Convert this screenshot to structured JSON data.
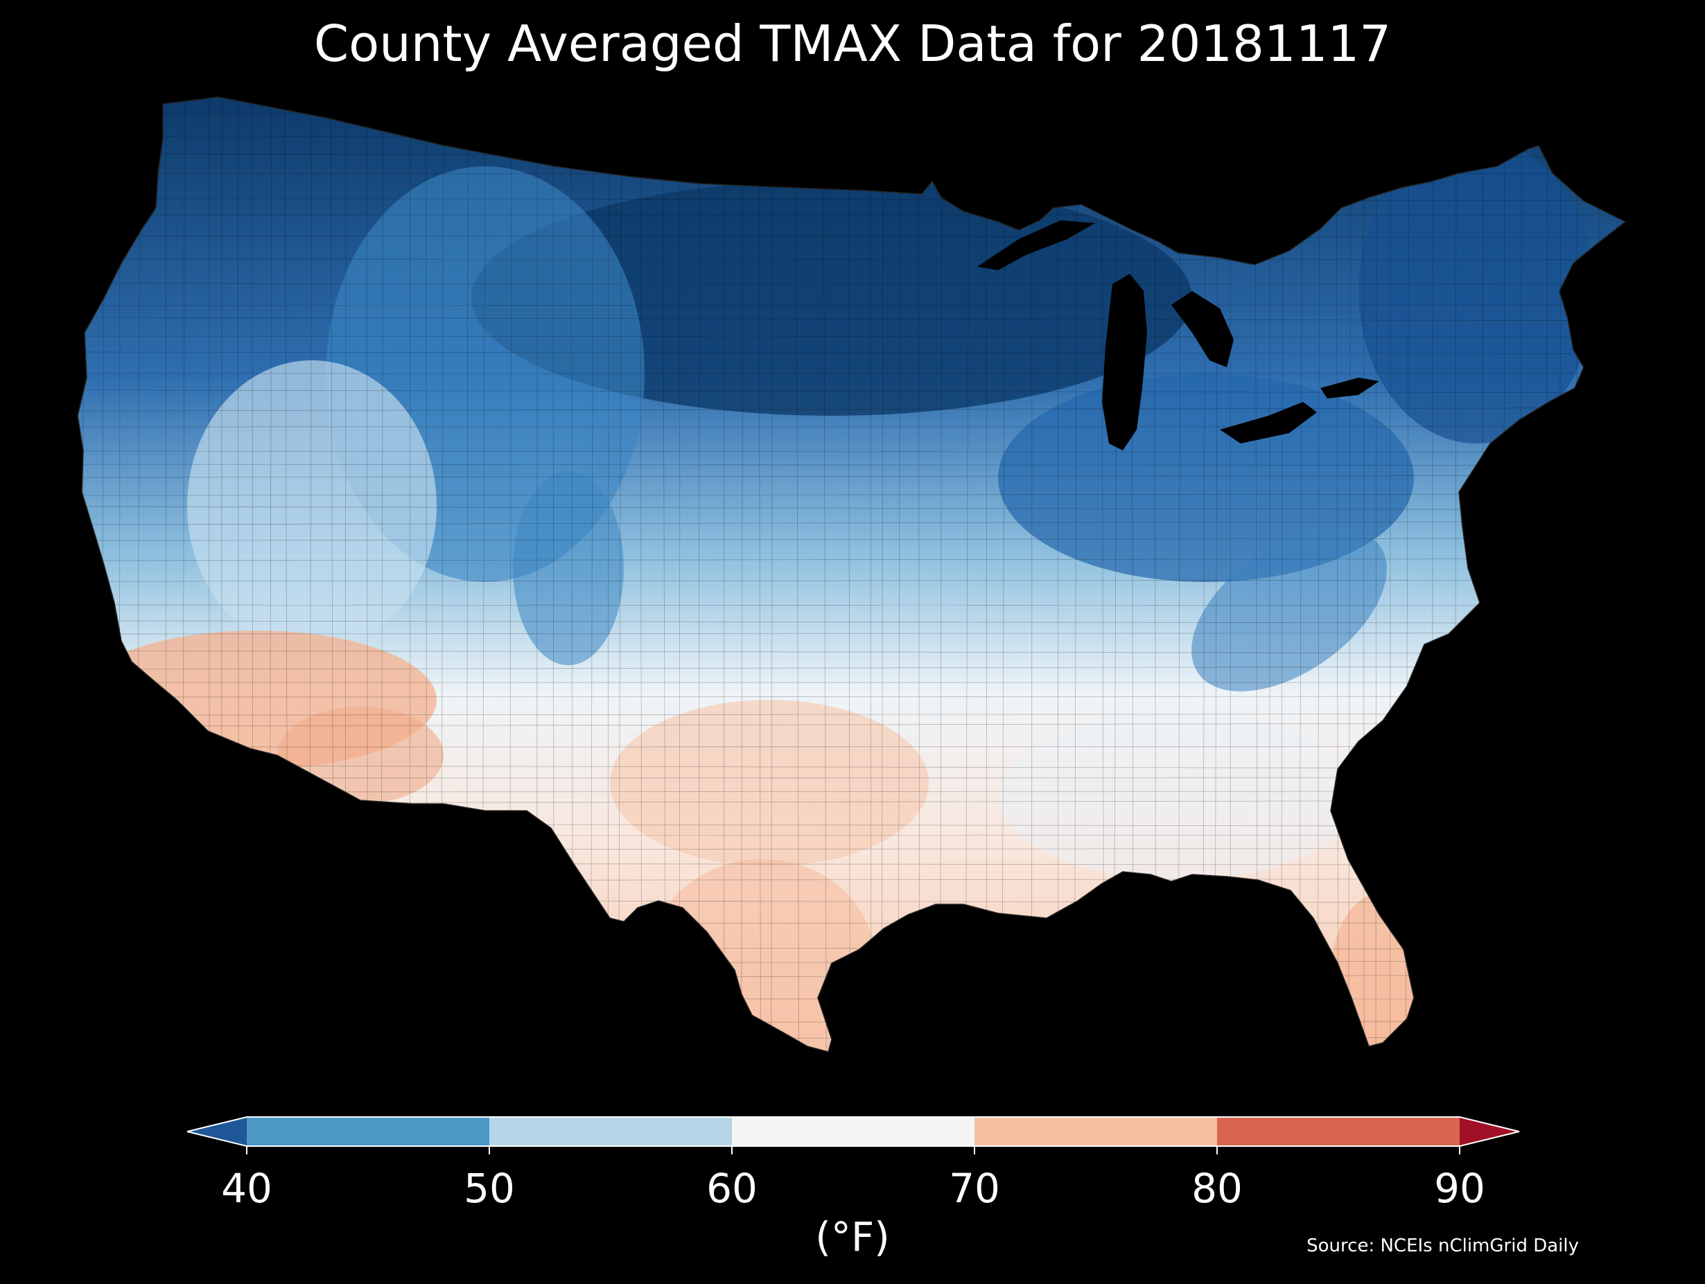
{
  "title": "County Averaged TMAX Data for 20181117",
  "colorbar": {
    "units_label": "(°F)",
    "ticks": [
      "40",
      "50",
      "60",
      "70",
      "80",
      "90"
    ],
    "bins": [
      {
        "range": "<40",
        "color": "#1f5799"
      },
      {
        "range": "40-50",
        "color": "#4b97c6"
      },
      {
        "range": "50-60",
        "color": "#b5d6e8"
      },
      {
        "range": "60-70",
        "color": "#f5f5f5"
      },
      {
        "range": "70-80",
        "color": "#f7c0a3"
      },
      {
        "range": "80-90",
        "color": "#d9654f"
      },
      {
        "range": ">90",
        "color": "#a01127"
      }
    ]
  },
  "source": "Source: NCEIs nClimGrid Daily",
  "map": {
    "region": "Contiguous United States",
    "variable": "TMAX",
    "date": "20181117",
    "background": "#000000"
  }
}
